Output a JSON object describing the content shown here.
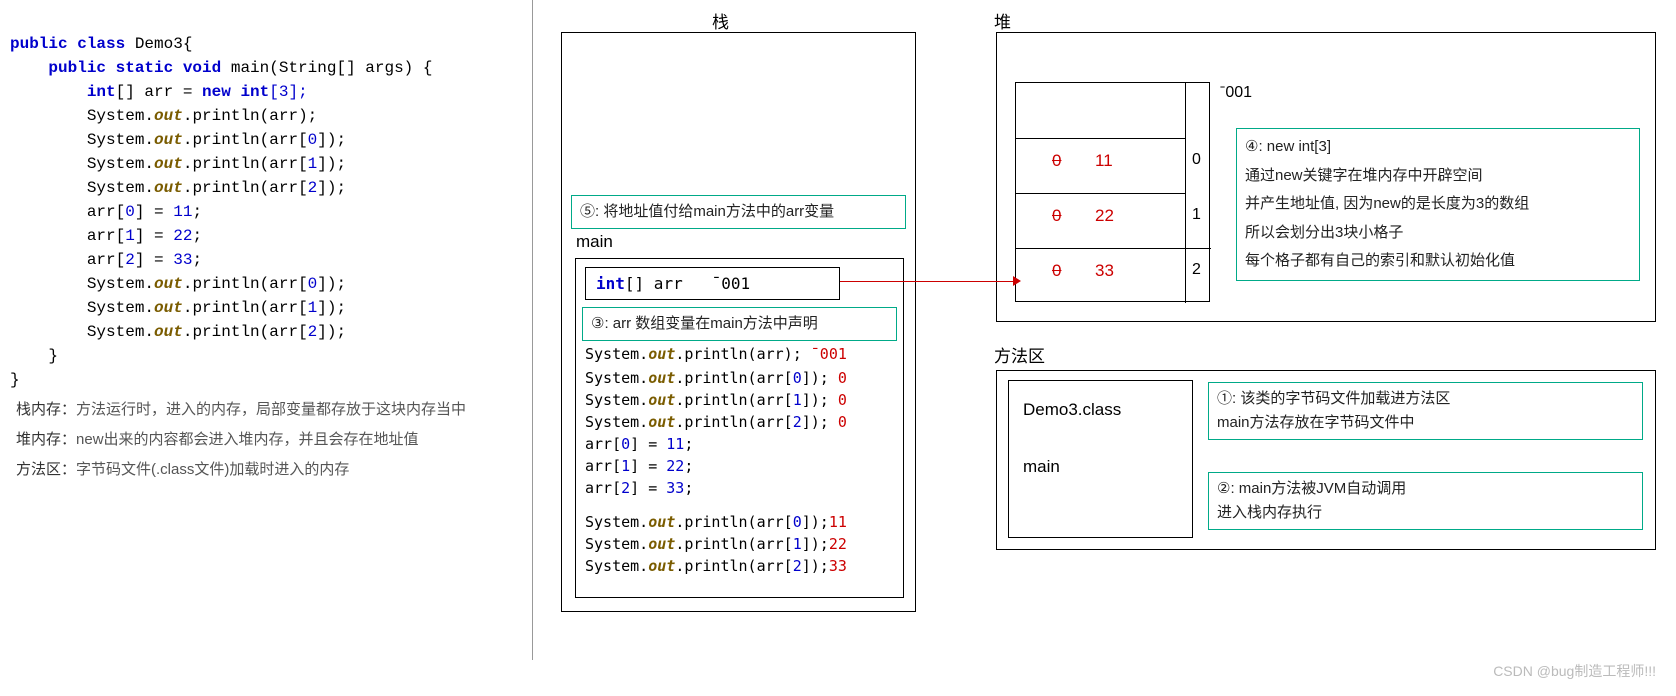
{
  "colors": {
    "kw": "#0000cc",
    "num": "#0000cc",
    "ident": "#333",
    "out": "#7a5c00",
    "str": "#008800",
    "green": "#0a8040",
    "red": "#cc0000",
    "gray": "#888"
  },
  "code": {
    "class_kw": "public class",
    "class_name": "Demo3",
    "main_sig_kw1": "public static void",
    "main_name": "main",
    "main_args": "(String[] args) {",
    "decl_kw1": "int",
    "decl_brackets": "[]",
    "decl_var": " arr = ",
    "decl_kw2": "new int",
    "decl_size": "[3];",
    "print1": "System.",
    "out": "out",
    "print2": ".println(arr);",
    "printIdx": ".println(arr[",
    "printEnd": "]);",
    "idx0": "0",
    "idx1": "1",
    "idx2": "2",
    "assign0": "arr[0] = 11;",
    "assign1": "arr[1] = 22;",
    "assign2": "arr[2] = 33;",
    "a0a": "arr[",
    "a0b": "] = ",
    "v11": "11",
    "v22": "22",
    "v33": "33",
    "semi": ";"
  },
  "explain": {
    "l1a": "栈内存：",
    "l1b": "方法运行时，进入的内存，局部变量都存放于这块内存当中",
    "l2a": "堆内存：",
    "l2b": "new出来的内容都会进入堆内存，并且会存在地址值",
    "l3a": "方法区：",
    "l3b": "字节码文件(.class文件)加载时进入的内存"
  },
  "stack": {
    "title": "栈",
    "callout5": "⑤: 将地址值付给main方法中的arr变量",
    "main_label": "main",
    "arr_decl": "int[] arr   ˉ001",
    "callout3": "③: arr 数组变量在main方法中声明",
    "lines": [
      "System.out.println(arr); ˉ001",
      "System.out.println(arr[0]); 0",
      "System.out.println(arr[1]); 0",
      "System.out.println(arr[2]); 0",
      "arr[0] = 11;",
      "arr[1] = 22;",
      "arr[2] = 33;",
      "System.out.println(arr[0]);11",
      "System.out.println(arr[1]);22",
      "System.out.println(arr[2]);33"
    ],
    "results": [
      "ˉ001",
      "0",
      "0",
      "0",
      "",
      "",
      "",
      "11",
      "22",
      "33"
    ]
  },
  "heap": {
    "title": "堆",
    "addr": "ˉ001",
    "cells": [
      {
        "old": "0",
        "new": "11",
        "idx": "0"
      },
      {
        "old": "0",
        "new": "22",
        "idx": "1"
      },
      {
        "old": "0",
        "new": "33",
        "idx": "2"
      }
    ],
    "callout4": [
      "④: new int[3]",
      "通过new关键字在堆内存中开辟空间",
      "并产生地址值, 因为new的是长度为3的数组",
      "所以会划分出3块小格子",
      "每个格子都有自己的索引和默认初始化值"
    ]
  },
  "method": {
    "title": "方法区",
    "class_name": "Demo3.class",
    "main": "main",
    "callout1": [
      "①: 该类的字节码文件加载进方法区",
      "main方法存放在字节码文件中"
    ],
    "callout2": [
      "②: main方法被JVM自动调用",
      "进入栈内存执行"
    ]
  },
  "watermark": "CSDN @bug制造工程师!!!"
}
